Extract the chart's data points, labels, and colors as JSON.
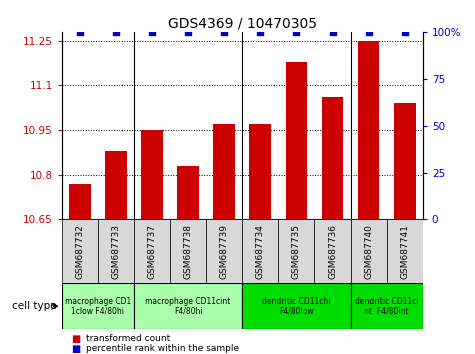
{
  "title": "GDS4369 / 10470305",
  "samples": [
    "GSM687732",
    "GSM687733",
    "GSM687737",
    "GSM687738",
    "GSM687739",
    "GSM687734",
    "GSM687735",
    "GSM687736",
    "GSM687740",
    "GSM687741"
  ],
  "transformed_counts": [
    10.77,
    10.88,
    10.95,
    10.83,
    10.97,
    10.97,
    11.18,
    11.06,
    11.25,
    11.04
  ],
  "percentile_ranks": [
    100,
    100,
    100,
    100,
    100,
    100,
    100,
    100,
    100,
    100
  ],
  "ylim_left": [
    10.65,
    11.28
  ],
  "ylim_right": [
    0,
    100
  ],
  "yticks_left": [
    10.65,
    10.8,
    10.95,
    11.1,
    11.25
  ],
  "ytick_labels_left": [
    "10.65",
    "10.8",
    "10.95",
    "11.1",
    "11.25"
  ],
  "yticks_right": [
    0,
    25,
    50,
    75,
    100
  ],
  "ytick_labels_right": [
    "0",
    "25",
    "50",
    "75",
    "100%"
  ],
  "bar_color": "#cc0000",
  "dot_color": "#0000cc",
  "background_color": "#ffffff",
  "sample_box_color": "#d8d8d8",
  "cell_type_groups": [
    {
      "label": "macrophage CD1\n1clow F4/80hi",
      "start": 0,
      "end": 2,
      "color": "#aaffaa"
    },
    {
      "label": "macrophage CD11cint\nF4/80hi",
      "start": 2,
      "end": 5,
      "color": "#aaffaa"
    },
    {
      "label": "dendritic CD11chi\nF4/80low",
      "start": 5,
      "end": 8,
      "color": "#00dd00"
    },
    {
      "label": "dendritic CD11ci\nnt  F4/80int",
      "start": 8,
      "end": 10,
      "color": "#00dd00"
    }
  ],
  "legend_items": [
    {
      "label": "transformed count",
      "color": "#cc0000"
    },
    {
      "label": "percentile rank within the sample",
      "color": "#0000cc"
    }
  ],
  "cell_type_label": "cell type",
  "group_boundaries": [
    1.5,
    4.5,
    7.5
  ]
}
